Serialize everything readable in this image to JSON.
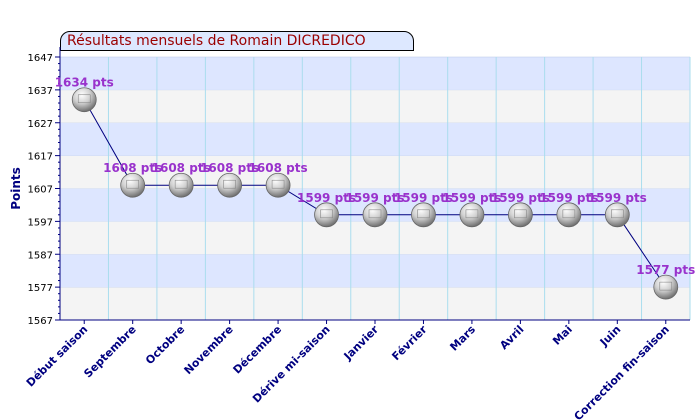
{
  "chart_data": {
    "type": "line",
    "title": "Résultats mensuels de Romain DICREDICO",
    "ylabel": "Points",
    "xlabel": "",
    "ylim": [
      1567,
      1647
    ],
    "yticks": [
      1567,
      1577,
      1587,
      1597,
      1607,
      1617,
      1627,
      1637,
      1647
    ],
    "categories": [
      "Début saison",
      "Septembre",
      "Octobre",
      "Novembre",
      "Décembre",
      "Dérive mi-saison",
      "Janvier",
      "Février",
      "Mars",
      "Avril",
      "Mai",
      "Juin",
      "Correction fin-saison"
    ],
    "values": [
      1634,
      1608,
      1608,
      1608,
      1608,
      1599,
      1599,
      1599,
      1599,
      1599,
      1599,
      1599,
      1577
    ],
    "data_labels": [
      "1634 pts",
      "1608 pts",
      "1608 pts",
      "1608 pts",
      "1608 pts",
      "1599 pts",
      "1599 pts",
      "1599 pts",
      "1599 pts",
      "1599 pts",
      "1599 pts",
      "1599 pts",
      "1577 pts"
    ],
    "grid": true,
    "legend": "none"
  },
  "colors": {
    "title": "#9a0000",
    "title_bg": "#dde8ff",
    "axis_text": "#000080",
    "data_label": "#9932cc",
    "line": "#000080",
    "band_light": "#f4f4f4",
    "band_blue": "#dde6ff",
    "grid_vertical": "#aaddee"
  }
}
